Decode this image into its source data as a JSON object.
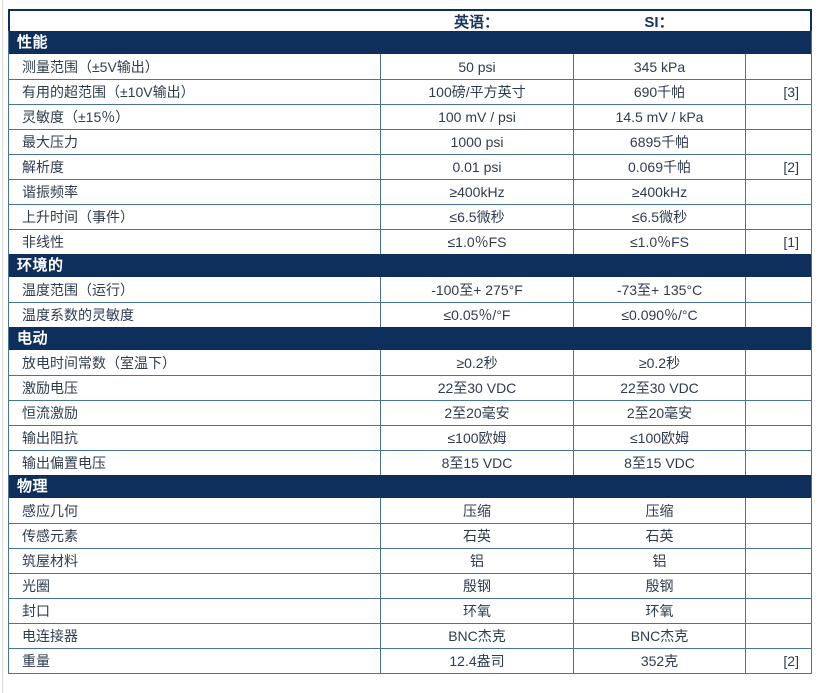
{
  "colors": {
    "navy": "#0e2f5c",
    "grid": "#4a7398",
    "header_text": "#17365d",
    "text": "#2f3c4e",
    "section_text": "#ffffff"
  },
  "table": {
    "column_headers": {
      "english": "英语：",
      "si": "SI："
    },
    "sections": [
      {
        "title": "性能",
        "rows": [
          {
            "label": "测量范围（±5V输出）",
            "english": "50 psi",
            "si": "345 kPa",
            "note": ""
          },
          {
            "label": "有用的超范围（±10V输出）",
            "english": "100磅/平方英寸",
            "si": "690千帕",
            "note": "[3]"
          },
          {
            "label": "灵敏度（±15％）",
            "english": "100 mV / psi",
            "si": "14.5 mV / kPa",
            "note": ""
          },
          {
            "label": "最大压力",
            "english": "1000 psi",
            "si": "6895千帕",
            "note": ""
          },
          {
            "label": "解析度",
            "english": "0.01 psi",
            "si": "0.069千帕",
            "note": "[2]"
          },
          {
            "label": "谐振频率",
            "english": "≥400kHz",
            "si": "≥400kHz",
            "note": ""
          },
          {
            "label": "上升时间（事件）",
            "english": "≤6.5微秒",
            "si": "≤6.5微秒",
            "note": ""
          },
          {
            "label": "非线性",
            "english": "≤1.0％FS",
            "si": "≤1.0％FS",
            "note": "[1]"
          }
        ]
      },
      {
        "title": "环境的",
        "rows": [
          {
            "label": "温度范围（运行）",
            "english": "-100至+ 275°F",
            "si": "-73至+ 135°C",
            "note": ""
          },
          {
            "label": "温度系数的灵敏度",
            "english": "≤0.05％/°F",
            "si": "≤0.090％/°C",
            "note": ""
          }
        ]
      },
      {
        "title": "电动",
        "rows": [
          {
            "label": "放电时间常数（室温下）",
            "english": "≥0.2秒",
            "si": "≥0.2秒",
            "note": ""
          },
          {
            "label": "激励电压",
            "english": "22至30 VDC",
            "si": "22至30 VDC",
            "note": ""
          },
          {
            "label": "恒流激励",
            "english": "2至20毫安",
            "si": "2至20毫安",
            "note": ""
          },
          {
            "label": "输出阻抗",
            "english": "≤100欧姆",
            "si": "≤100欧姆",
            "note": ""
          },
          {
            "label": "输出偏置电压",
            "english": "8至15 VDC",
            "si": "8至15 VDC",
            "note": ""
          }
        ]
      },
      {
        "title": "物理",
        "rows": [
          {
            "label": "感应几何",
            "english": "压缩",
            "si": "压缩",
            "note": ""
          },
          {
            "label": "传感元素",
            "english": "石英",
            "si": "石英",
            "note": ""
          },
          {
            "label": "筑屋材料",
            "english": "铝",
            "si": "铝",
            "note": ""
          },
          {
            "label": "光圈",
            "english": "殷钢",
            "si": "殷钢",
            "note": ""
          },
          {
            "label": "封口",
            "english": "环氧",
            "si": "环氧",
            "note": ""
          },
          {
            "label": "电连接器",
            "english": "BNC杰克",
            "si": "BNC杰克",
            "note": ""
          },
          {
            "label": "重量",
            "english": "12.4盎司",
            "si": "352克",
            "note": "[2]"
          }
        ]
      }
    ]
  }
}
